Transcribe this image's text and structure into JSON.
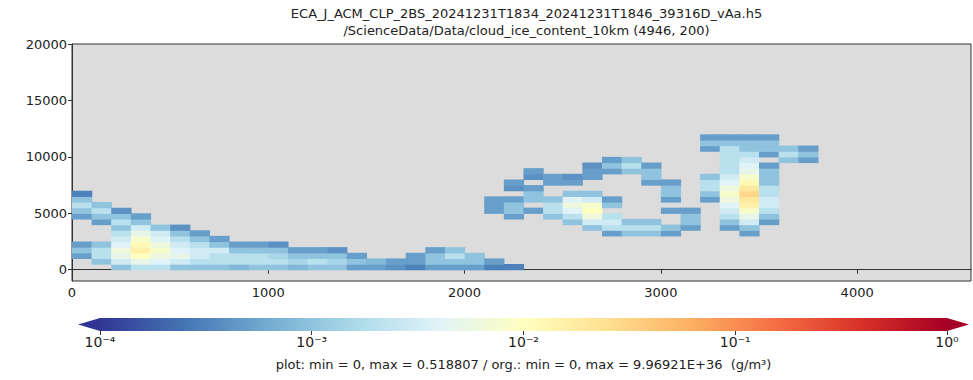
{
  "chart_data": {
    "type": "heatmap",
    "title": "ECA_J_ACM_CLP_2BS_20241231T1834_20241231T1846_39316D_vAa.h5",
    "subtitle": "/ScienceData/Data/cloud_ice_content_10km (4946, 200)",
    "xlim": [
      0,
      4580
    ],
    "xticks": [
      0,
      1000,
      2000,
      3000,
      4000
    ],
    "ylim": [
      -1000,
      20000
    ],
    "yticks": [
      0,
      5000,
      10000,
      15000,
      20000
    ],
    "grid": false,
    "cells": {
      "x_step": 100,
      "y_step": 500,
      "values": [
        [
          0,
          1000,
          0.0005
        ],
        [
          0,
          1500,
          0.001
        ],
        [
          0,
          2000,
          0.0005
        ],
        [
          0,
          4500,
          0.0005
        ],
        [
          0,
          5000,
          0.001
        ],
        [
          0,
          5500,
          0.002
        ],
        [
          0,
          6000,
          0.001
        ],
        [
          0,
          6500,
          0.0003
        ],
        [
          100,
          500,
          0.001
        ],
        [
          100,
          1000,
          0.002
        ],
        [
          100,
          1500,
          0.002
        ],
        [
          100,
          2000,
          0.001
        ],
        [
          100,
          4000,
          0.0005
        ],
        [
          100,
          4500,
          0.001
        ],
        [
          100,
          5000,
          0.002
        ],
        [
          100,
          5500,
          0.001
        ],
        [
          200,
          0,
          0.001
        ],
        [
          200,
          500,
          0.003
        ],
        [
          200,
          1000,
          0.005
        ],
        [
          200,
          1500,
          0.006
        ],
        [
          200,
          2000,
          0.004
        ],
        [
          200,
          2500,
          0.003
        ],
        [
          200,
          3000,
          0.002
        ],
        [
          200,
          3500,
          0.001
        ],
        [
          200,
          4000,
          0.002
        ],
        [
          200,
          4500,
          0.001
        ],
        [
          200,
          5000,
          0.0004
        ],
        [
          300,
          0,
          0.002
        ],
        [
          300,
          500,
          0.005
        ],
        [
          300,
          1000,
          0.01
        ],
        [
          300,
          1500,
          0.015
        ],
        [
          300,
          2000,
          0.012
        ],
        [
          300,
          2500,
          0.008
        ],
        [
          300,
          3000,
          0.005
        ],
        [
          300,
          3500,
          0.003
        ],
        [
          300,
          4000,
          0.001
        ],
        [
          300,
          4500,
          0.0005
        ],
        [
          400,
          0,
          0.002
        ],
        [
          400,
          500,
          0.004
        ],
        [
          400,
          1000,
          0.006
        ],
        [
          400,
          1500,
          0.008
        ],
        [
          400,
          2000,
          0.006
        ],
        [
          400,
          2500,
          0.004
        ],
        [
          400,
          3000,
          0.003
        ],
        [
          400,
          3500,
          0.001
        ],
        [
          500,
          0,
          0.001
        ],
        [
          500,
          500,
          0.003
        ],
        [
          500,
          1000,
          0.005
        ],
        [
          500,
          1500,
          0.004
        ],
        [
          500,
          2000,
          0.003
        ],
        [
          500,
          2500,
          0.002
        ],
        [
          500,
          3000,
          0.001
        ],
        [
          500,
          3500,
          0.0004
        ],
        [
          600,
          0,
          0.001
        ],
        [
          600,
          500,
          0.002
        ],
        [
          600,
          1000,
          0.003
        ],
        [
          600,
          1500,
          0.003
        ],
        [
          600,
          2000,
          0.002
        ],
        [
          600,
          2500,
          0.001
        ],
        [
          600,
          3000,
          0.0005
        ],
        [
          700,
          0,
          0.001
        ],
        [
          700,
          500,
          0.002
        ],
        [
          700,
          1000,
          0.002
        ],
        [
          700,
          1500,
          0.003
        ],
        [
          700,
          2000,
          0.001
        ],
        [
          700,
          2500,
          0.0005
        ],
        [
          800,
          0,
          0.0008
        ],
        [
          800,
          500,
          0.002
        ],
        [
          800,
          1000,
          0.002
        ],
        [
          800,
          1500,
          0.001
        ],
        [
          800,
          2000,
          0.0005
        ],
        [
          900,
          0,
          0.001
        ],
        [
          900,
          500,
          0.002
        ],
        [
          900,
          1000,
          0.002
        ],
        [
          900,
          1500,
          0.001
        ],
        [
          900,
          2000,
          0.0005
        ],
        [
          1000,
          0,
          0.001
        ],
        [
          1000,
          500,
          0.002
        ],
        [
          1000,
          1000,
          0.0015
        ],
        [
          1000,
          1500,
          0.001
        ],
        [
          1000,
          2000,
          0.0004
        ],
        [
          1100,
          0,
          0.0008
        ],
        [
          1100,
          500,
          0.0015
        ],
        [
          1100,
          1000,
          0.001
        ],
        [
          1100,
          1500,
          0.0005
        ],
        [
          1200,
          0,
          0.001
        ],
        [
          1200,
          500,
          0.002
        ],
        [
          1200,
          1000,
          0.001
        ],
        [
          1200,
          1500,
          0.0005
        ],
        [
          1300,
          0,
          0.001
        ],
        [
          1300,
          500,
          0.0015
        ],
        [
          1300,
          1000,
          0.001
        ],
        [
          1300,
          1500,
          0.0004
        ],
        [
          1400,
          0,
          0.0005
        ],
        [
          1400,
          500,
          0.001
        ],
        [
          1400,
          1000,
          0.0005
        ],
        [
          1500,
          0,
          0.0005
        ],
        [
          1500,
          500,
          0.0008
        ],
        [
          1600,
          0,
          0.0004
        ],
        [
          1600,
          500,
          0.0005
        ],
        [
          1700,
          0,
          0.0003
        ],
        [
          1700,
          500,
          0.0005
        ],
        [
          1700,
          1000,
          0.0005
        ],
        [
          1800,
          0,
          0.0005
        ],
        [
          1800,
          500,
          0.001
        ],
        [
          1800,
          1000,
          0.001
        ],
        [
          1800,
          1500,
          0.0005
        ],
        [
          1900,
          0,
          0.0005
        ],
        [
          1900,
          500,
          0.001
        ],
        [
          1900,
          1000,
          0.002
        ],
        [
          1900,
          1500,
          0.001
        ],
        [
          2000,
          0,
          0.0005
        ],
        [
          2000,
          500,
          0.001
        ],
        [
          2000,
          1000,
          0.001
        ],
        [
          2100,
          0,
          0.0003
        ],
        [
          2100,
          500,
          0.0005
        ],
        [
          2100,
          5000,
          0.0005
        ],
        [
          2100,
          5500,
          0.0005
        ],
        [
          2100,
          6000,
          0.0005
        ],
        [
          2200,
          0,
          0.0003
        ],
        [
          2200,
          4500,
          0.0005
        ],
        [
          2200,
          5000,
          0.001
        ],
        [
          2200,
          5500,
          0.001
        ],
        [
          2200,
          6000,
          0.0005
        ],
        [
          2200,
          7000,
          0.0004
        ],
        [
          2200,
          7500,
          0.0005
        ],
        [
          2300,
          5000,
          0.0005
        ],
        [
          2300,
          6000,
          0.001
        ],
        [
          2300,
          6500,
          0.001
        ],
        [
          2300,
          7000,
          0.0005
        ],
        [
          2300,
          8000,
          0.0004
        ],
        [
          2300,
          8500,
          0.0005
        ],
        [
          2400,
          4500,
          0.001
        ],
        [
          2400,
          5000,
          0.002
        ],
        [
          2400,
          5500,
          0.002
        ],
        [
          2400,
          6000,
          0.001
        ],
        [
          2400,
          7500,
          0.0005
        ],
        [
          2400,
          8000,
          0.0005
        ],
        [
          2500,
          4000,
          0.001
        ],
        [
          2500,
          4500,
          0.002
        ],
        [
          2500,
          5000,
          0.004
        ],
        [
          2500,
          5500,
          0.006
        ],
        [
          2500,
          6000,
          0.004
        ],
        [
          2500,
          6500,
          0.001
        ],
        [
          2500,
          7500,
          0.0005
        ],
        [
          2500,
          8000,
          0.0004
        ],
        [
          2600,
          3500,
          0.001
        ],
        [
          2600,
          4000,
          0.003
        ],
        [
          2600,
          4500,
          0.006
        ],
        [
          2600,
          5000,
          0.01
        ],
        [
          2600,
          5500,
          0.008
        ],
        [
          2600,
          6000,
          0.003
        ],
        [
          2600,
          6500,
          0.001
        ],
        [
          2600,
          8000,
          0.0005
        ],
        [
          2600,
          8500,
          0.0005
        ],
        [
          2600,
          9000,
          0.0004
        ],
        [
          2700,
          3000,
          0.0005
        ],
        [
          2700,
          3500,
          0.002
        ],
        [
          2700,
          4000,
          0.003
        ],
        [
          2700,
          4500,
          0.002
        ],
        [
          2700,
          5500,
          0.001
        ],
        [
          2700,
          6000,
          0.0005
        ],
        [
          2700,
          8500,
          0.0005
        ],
        [
          2700,
          9000,
          0.001
        ],
        [
          2700,
          9500,
          0.0005
        ],
        [
          2800,
          3000,
          0.001
        ],
        [
          2800,
          3500,
          0.002
        ],
        [
          2800,
          4000,
          0.001
        ],
        [
          2800,
          8500,
          0.001
        ],
        [
          2800,
          9000,
          0.002
        ],
        [
          2800,
          9500,
          0.001
        ],
        [
          2900,
          3000,
          0.001
        ],
        [
          2900,
          3500,
          0.002
        ],
        [
          2900,
          4000,
          0.001
        ],
        [
          2900,
          7500,
          0.0005
        ],
        [
          2900,
          8000,
          0.001
        ],
        [
          2900,
          8500,
          0.001
        ],
        [
          2900,
          9000,
          0.0005
        ],
        [
          3000,
          3000,
          0.0005
        ],
        [
          3000,
          3500,
          0.001
        ],
        [
          3000,
          5000,
          0.0005
        ],
        [
          3000,
          6000,
          0.0005
        ],
        [
          3000,
          6500,
          0.001
        ],
        [
          3000,
          7000,
          0.001
        ],
        [
          3000,
          7500,
          0.0005
        ],
        [
          3100,
          3500,
          0.0005
        ],
        [
          3100,
          4000,
          0.001
        ],
        [
          3100,
          4500,
          0.001
        ],
        [
          3100,
          5000,
          0.0005
        ],
        [
          3200,
          6000,
          0.0005
        ],
        [
          3200,
          6500,
          0.001
        ],
        [
          3200,
          7000,
          0.002
        ],
        [
          3200,
          7500,
          0.002
        ],
        [
          3200,
          8000,
          0.001
        ],
        [
          3200,
          10500,
          0.0005
        ],
        [
          3200,
          11000,
          0.001
        ],
        [
          3200,
          11500,
          0.0005
        ],
        [
          3300,
          3500,
          0.0005
        ],
        [
          3300,
          4000,
          0.001
        ],
        [
          3300,
          4500,
          0.002
        ],
        [
          3300,
          5000,
          0.003
        ],
        [
          3300,
          5500,
          0.004
        ],
        [
          3300,
          6000,
          0.006
        ],
        [
          3300,
          6500,
          0.008
        ],
        [
          3300,
          7000,
          0.006
        ],
        [
          3300,
          7500,
          0.004
        ],
        [
          3300,
          8000,
          0.003
        ],
        [
          3300,
          8500,
          0.002
        ],
        [
          3300,
          9000,
          0.002
        ],
        [
          3300,
          9500,
          0.002
        ],
        [
          3300,
          10000,
          0.002
        ],
        [
          3300,
          10500,
          0.002
        ],
        [
          3300,
          11000,
          0.001
        ],
        [
          3300,
          11500,
          0.0005
        ],
        [
          3400,
          3000,
          0.0005
        ],
        [
          3400,
          3500,
          0.001
        ],
        [
          3400,
          4000,
          0.003
        ],
        [
          3400,
          4500,
          0.005
        ],
        [
          3400,
          5000,
          0.008
        ],
        [
          3400,
          5500,
          0.015
        ],
        [
          3400,
          6000,
          0.02
        ],
        [
          3400,
          6500,
          0.03
        ],
        [
          3400,
          7000,
          0.02
        ],
        [
          3400,
          7500,
          0.012
        ],
        [
          3400,
          8000,
          0.008
        ],
        [
          3400,
          8500,
          0.005
        ],
        [
          3400,
          9000,
          0.004
        ],
        [
          3400,
          9500,
          0.003
        ],
        [
          3400,
          10000,
          0.002
        ],
        [
          3400,
          10500,
          0.001
        ],
        [
          3400,
          11000,
          0.001
        ],
        [
          3400,
          11500,
          0.0005
        ],
        [
          3500,
          4000,
          0.0005
        ],
        [
          3500,
          4500,
          0.001
        ],
        [
          3500,
          5000,
          0.002
        ],
        [
          3500,
          5500,
          0.003
        ],
        [
          3500,
          6000,
          0.003
        ],
        [
          3500,
          6500,
          0.002
        ],
        [
          3500,
          7000,
          0.002
        ],
        [
          3500,
          7500,
          0.001
        ],
        [
          3500,
          8000,
          0.001
        ],
        [
          3500,
          8500,
          0.001
        ],
        [
          3500,
          9000,
          0.0005
        ],
        [
          3500,
          10000,
          0.0005
        ],
        [
          3500,
          10500,
          0.001
        ],
        [
          3500,
          11000,
          0.001
        ],
        [
          3500,
          11500,
          0.0005
        ],
        [
          3600,
          9500,
          0.001
        ],
        [
          3600,
          10000,
          0.002
        ],
        [
          3600,
          10500,
          0.001
        ],
        [
          3700,
          9500,
          0.0005
        ],
        [
          3700,
          10000,
          0.001
        ],
        [
          3700,
          10500,
          0.0005
        ]
      ]
    },
    "colorbar": {
      "range": [
        0.0001,
        1
      ],
      "log": true,
      "ticks": [
        {
          "value": 0.0001,
          "label": "10⁻⁴"
        },
        {
          "value": 0.001,
          "label": "10⁻³"
        },
        {
          "value": 0.01,
          "label": "10⁻²"
        },
        {
          "value": 0.1,
          "label": "10⁻¹"
        },
        {
          "value": 1,
          "label": "10⁰"
        }
      ],
      "label": "plot: min = 0, max = 0.518807 / org.: min = 0, max = 9.96921E+36  (g/m³)",
      "colors": [
        "#313695",
        "#4575b4",
        "#74add1",
        "#abd9e9",
        "#e0f3f8",
        "#ffffbf",
        "#fee090",
        "#fdae61",
        "#f46d43",
        "#d73027",
        "#a50026"
      ]
    }
  }
}
